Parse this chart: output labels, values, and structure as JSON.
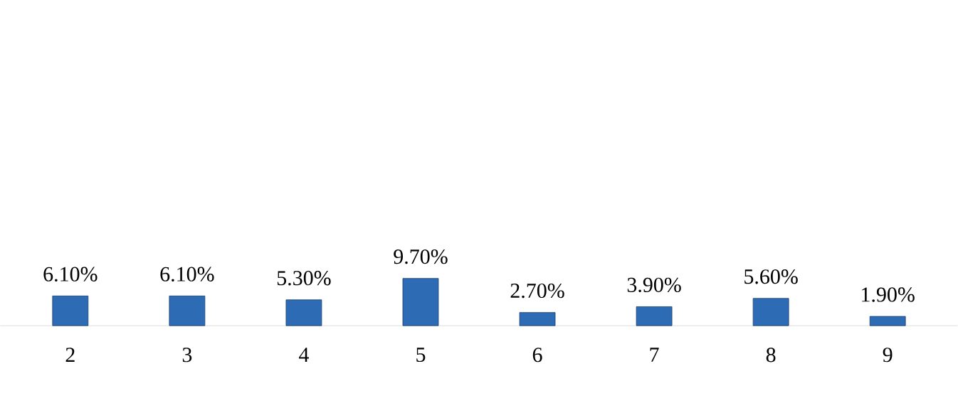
{
  "chart_data": {
    "type": "bar",
    "categories": [
      "2",
      "3",
      "4",
      "5",
      "6",
      "7",
      "8",
      "9"
    ],
    "values": [
      6.1,
      6.1,
      5.3,
      9.7,
      2.7,
      3.9,
      5.6,
      1.9
    ],
    "value_labels": [
      "6.10%",
      "6.10%",
      "5.30%",
      "9.70%",
      "2.70%",
      "3.90%",
      "5.60%",
      "1.90%"
    ],
    "color": "#2e6bb5"
  }
}
